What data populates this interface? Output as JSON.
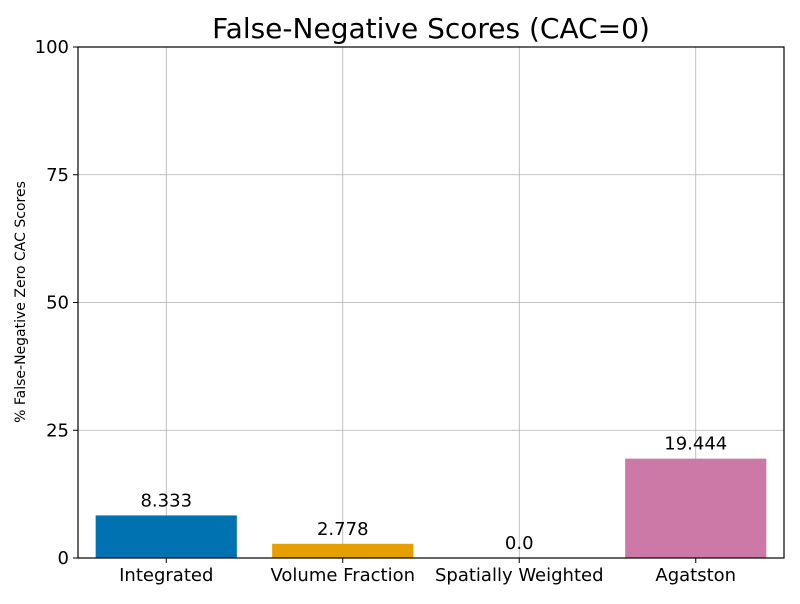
{
  "chart_data": {
    "type": "bar",
    "title": "False-Negative Scores (CAC=0)",
    "xlabel": "",
    "ylabel": "% False-Negative Zero CAC Scores",
    "categories": [
      "Integrated",
      "Volume Fraction",
      "Spatially Weighted",
      "Agatston"
    ],
    "values": [
      8.333,
      2.778,
      0.0,
      19.444
    ],
    "value_labels": [
      "8.333",
      "2.778",
      "0.0",
      "19.444"
    ],
    "colors": [
      "#0072B2",
      "#E69F00",
      "#009E73",
      "#CC79A7"
    ],
    "ylim": [
      0,
      100
    ],
    "yticks": [
      0,
      25,
      50,
      75,
      100
    ],
    "ytick_labels": [
      "0",
      "25",
      "50",
      "75",
      "100"
    ],
    "grid": true,
    "legend": "none"
  }
}
